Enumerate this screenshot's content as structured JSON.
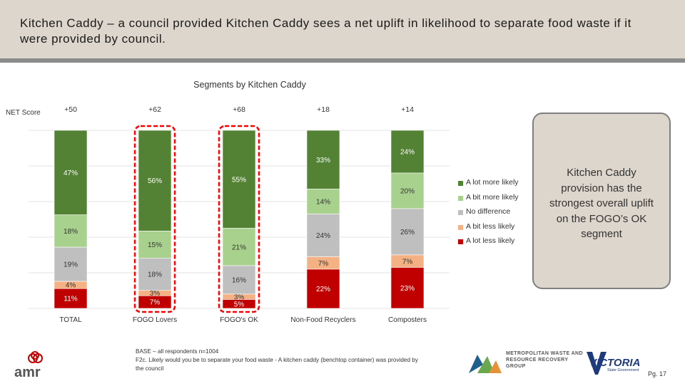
{
  "header": {
    "title": "Kitchen Caddy – a council provided Kitchen Caddy sees a net uplift in likelihood to separate food waste if it were provided by council."
  },
  "net_score_label": "NET Score",
  "callout": {
    "text": "Kitchen Caddy provision has the strongest overall uplift on the FOGO’s OK segment"
  },
  "base_note": "BASE – all respondents n=1004\nF2c. Likely would you be to separate your food waste - A kitchen caddy (benchtop container) was provided by the council",
  "page_number": "Pg. 17",
  "logos": {
    "amr": "amr",
    "mwrrg": "METROPOLITAN WASTE AND RESOURCE RECOVERY GROUP",
    "vic": "VICTORIA",
    "vic_sub": "State Government"
  },
  "colors": {
    "header_bg": "#ddd6cc",
    "header_rule": "#8c8c8c",
    "highlight": "#ff0000"
  },
  "chart_data": {
    "type": "bar",
    "stacked": true,
    "title": "Segments by Kitchen Caddy",
    "categories": [
      "TOTAL",
      "FOGO Lovers",
      "FOGO's OK",
      "Non-Food Recyclers",
      "Composters"
    ],
    "net_scores": [
      "+50",
      "+62",
      "+68",
      "+18",
      "+14"
    ],
    "highlighted_categories": [
      "FOGO Lovers",
      "FOGO's OK"
    ],
    "series": [
      {
        "name": "A lot more likely",
        "color": "#548235",
        "values": [
          47,
          56,
          55,
          33,
          24
        ]
      },
      {
        "name": "A bit more likely",
        "color": "#a9d18e",
        "values": [
          18,
          15,
          21,
          14,
          20
        ]
      },
      {
        "name": "No difference",
        "color": "#bfbfbf",
        "values": [
          19,
          18,
          16,
          24,
          26
        ]
      },
      {
        "name": "A bit less likely",
        "color": "#f4b183",
        "values": [
          4,
          3,
          3,
          7,
          7
        ]
      },
      {
        "name": "A lot less likely",
        "color": "#c00000",
        "values": [
          11,
          7,
          5,
          22,
          23
        ]
      }
    ],
    "legend_position": "right",
    "grid": true
  }
}
